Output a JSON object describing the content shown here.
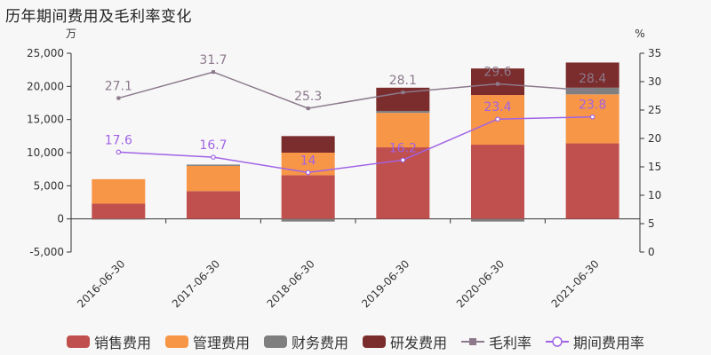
{
  "chart_data": {
    "type": "bar",
    "title": "历年期间费用及毛利率变化",
    "categories": [
      "2016-06-30",
      "2017-06-30",
      "2018-06-30",
      "2019-06-30",
      "2020-06-30",
      "2021-06-30"
    ],
    "y_left": {
      "unit": "万",
      "ylim": [
        -5000,
        25000
      ],
      "ticks": [
        "-5,000",
        "0",
        "5,000",
        "10,000",
        "15,000",
        "20,000",
        "25,000"
      ]
    },
    "y_right": {
      "unit": "%",
      "ylim": [
        0,
        35
      ],
      "ticks": [
        "0",
        "5",
        "10",
        "15",
        "20",
        "25",
        "30",
        "35"
      ]
    },
    "bar_series": [
      {
        "name": "销售费用",
        "color": "#c0504d",
        "values": [
          2300,
          4200,
          6600,
          10800,
          11200,
          11400
        ]
      },
      {
        "name": "管理费用",
        "color": "#f79646",
        "values": [
          3700,
          3800,
          3400,
          5200,
          7500,
          7400
        ]
      },
      {
        "name": "财务费用",
        "color": "#7f7f7f",
        "values": [
          -100,
          200,
          -400,
          300,
          -400,
          1000
        ]
      },
      {
        "name": "研发费用",
        "color": "#7b2c2c",
        "values": [
          0,
          0,
          2500,
          3500,
          4000,
          3800
        ]
      }
    ],
    "line_series": [
      {
        "name": "毛利率",
        "color": "#8c7a8c",
        "values": [
          27.1,
          31.7,
          25.3,
          28.1,
          29.6,
          28.4
        ],
        "labels": [
          "27.1",
          "31.7",
          "25.3",
          "28.1",
          "29.6",
          "28.4"
        ]
      },
      {
        "name": "期间费用率",
        "color": "#a163e6",
        "values": [
          17.6,
          16.7,
          14,
          16.2,
          23.4,
          23.8
        ],
        "labels": [
          "17.6",
          "16.7",
          "14",
          "16.2",
          "23.4",
          "23.8"
        ]
      }
    ],
    "grid": false,
    "legend": "bottom"
  }
}
